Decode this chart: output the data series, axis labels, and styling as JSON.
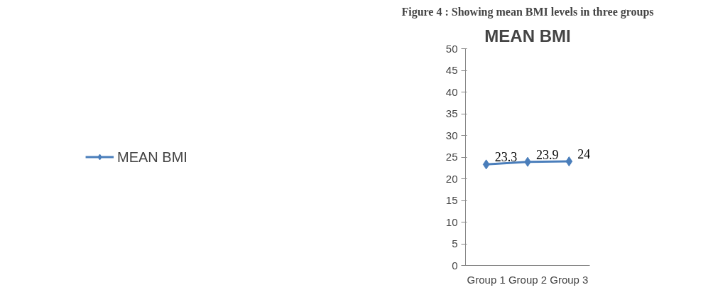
{
  "chart_data": {
    "type": "line",
    "title": "MEAN BMI",
    "annotations": [
      "Figure 4 : Showing mean BMI levels in three groups"
    ],
    "categories": [
      "Group 1",
      "Group 2",
      "Group 3"
    ],
    "series": [
      {
        "name": "MEAN BMI",
        "color": "#4a7ebb",
        "values": [
          23.3,
          23.9,
          24
        ]
      }
    ],
    "ylim": [
      0,
      50
    ],
    "yticks": [
      0,
      5,
      10,
      15,
      20,
      25,
      30,
      35,
      40,
      45,
      50
    ],
    "marker": "diamond",
    "line_style": "solid",
    "data_labels": true,
    "grid": false,
    "legend": "left"
  }
}
